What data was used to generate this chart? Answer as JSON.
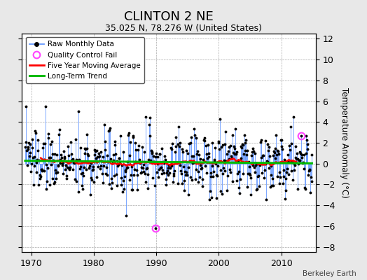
{
  "title": "CLINTON 2 NE",
  "subtitle": "35.025 N, 78.276 W (United States)",
  "ylabel": "Temperature Anomaly (°C)",
  "attribution": "Berkeley Earth",
  "xlim": [
    1968.5,
    2015.5
  ],
  "ylim": [
    -8.5,
    12.5
  ],
  "yticks": [
    -8,
    -6,
    -4,
    -2,
    0,
    2,
    4,
    6,
    8,
    10,
    12
  ],
  "xticks": [
    1970,
    1980,
    1990,
    2000,
    2010
  ],
  "bg_color": "#e8e8e8",
  "plot_bg_color": "#ffffff",
  "stem_color": "#6699ff",
  "marker_color": "#000000",
  "qc_color": "#ff44ff",
  "moving_avg_color": "#ff0000",
  "trend_color": "#00bb00",
  "seed": 137
}
